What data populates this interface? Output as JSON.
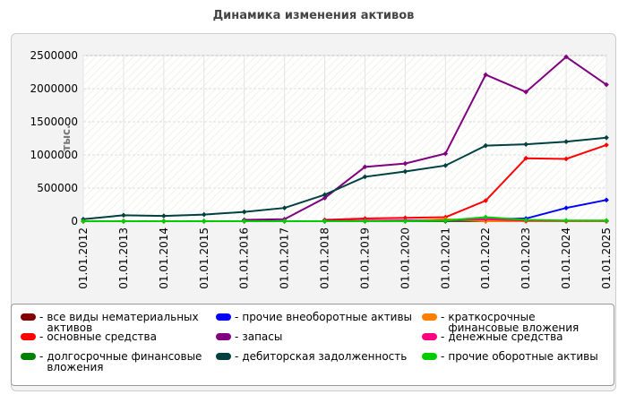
{
  "chart_data": {
    "type": "line",
    "title": "Динамика изменения активов",
    "y_label": "тыс.",
    "categories": [
      "01.01.2012",
      "01.01.2013",
      "01.01.2014",
      "01.01.2015",
      "01.01.2016",
      "01.01.2017",
      "01.01.2018",
      "01.01.2019",
      "01.01.2020",
      "01.01.2021",
      "01.01.2022",
      "01.01.2023",
      "01.01.2024",
      "01.01.2025"
    ],
    "ylim": [
      0,
      2500000
    ],
    "yticks": [
      0,
      500000,
      1000000,
      1500000,
      2000000,
      2500000
    ],
    "grid": true,
    "legend": "bottom",
    "series": [
      {
        "name": "все виды нематериальных активов",
        "color": "#800000",
        "values": [
          0,
          0,
          0,
          0,
          0,
          0,
          0,
          0,
          0,
          0,
          0,
          0,
          0,
          0
        ]
      },
      {
        "name": "основные средства",
        "color": "#ff0000",
        "values": [
          null,
          null,
          null,
          null,
          null,
          null,
          20000,
          40000,
          50000,
          60000,
          310000,
          950000,
          940000,
          1150000
        ]
      },
      {
        "name": "долгосрочные финансовые вложения",
        "color": "#008000",
        "values": [
          0,
          0,
          0,
          0,
          0,
          0,
          0,
          0,
          0,
          0,
          0,
          0,
          0,
          0
        ]
      },
      {
        "name": "прочие внеоборотные активы",
        "color": "#0000ff",
        "values": [
          null,
          null,
          null,
          null,
          null,
          null,
          5000,
          5000,
          10000,
          10000,
          30000,
          40000,
          200000,
          320000
        ]
      },
      {
        "name": "запасы",
        "color": "#800080",
        "values": [
          null,
          null,
          null,
          null,
          20000,
          30000,
          350000,
          820000,
          870000,
          1020000,
          2210000,
          1950000,
          2480000,
          2060000
        ]
      },
      {
        "name": "дебиторская задолженность",
        "color": "#004040",
        "values": [
          30000,
          90000,
          80000,
          100000,
          140000,
          200000,
          400000,
          670000,
          750000,
          840000,
          1140000,
          1160000,
          1200000,
          1260000
        ]
      },
      {
        "name": "краткосрочные финансовые вложения",
        "color": "#ff8000",
        "values": [
          0,
          0,
          0,
          0,
          0,
          0,
          0,
          0,
          0,
          30000,
          0,
          0,
          0,
          0
        ]
      },
      {
        "name": "денежные средства",
        "color": "#ff0080",
        "values": [
          0,
          0,
          0,
          0,
          0,
          0,
          0,
          10000,
          10000,
          10000,
          30000,
          10000,
          5000,
          5000
        ]
      },
      {
        "name": "прочие оборотные активы",
        "color": "#00cc00",
        "values": [
          0,
          0,
          0,
          0,
          0,
          0,
          0,
          0,
          0,
          10000,
          60000,
          20000,
          10000,
          10000
        ]
      }
    ]
  }
}
